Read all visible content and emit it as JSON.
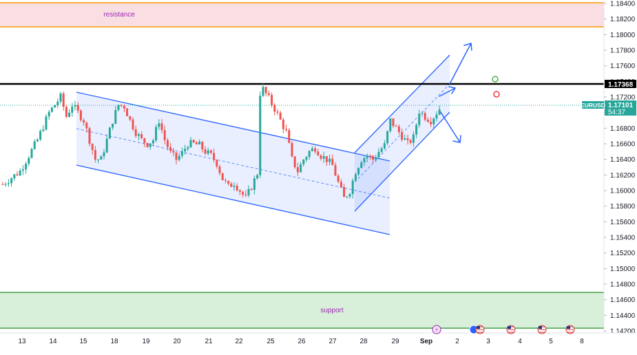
{
  "chart_data": {
    "type": "candlestick",
    "symbol": "EURUSD",
    "current_price": "1.17101",
    "countdown": "54:37",
    "key_level": "1.17368",
    "zones": {
      "resistance": {
        "label": "resistance",
        "from": 1.181,
        "to": 1.184
      },
      "support": {
        "label": "support",
        "from": 1.1424,
        "to": 1.147
      }
    },
    "ylim": [
      1.142,
      1.185
    ],
    "y_ticks": [
      "1.18400",
      "1.18200",
      "1.18000",
      "1.17800",
      "1.17600",
      "1.17400",
      "1.17200",
      "1.17000",
      "1.16800",
      "1.16600",
      "1.16400",
      "1.16200",
      "1.16000",
      "1.15800",
      "1.15600",
      "1.15400",
      "1.15200",
      "1.15000",
      "1.14800",
      "1.14600",
      "1.14400",
      "1.14200"
    ],
    "x_ticks": [
      "13",
      "14",
      "15",
      "18",
      "19",
      "20",
      "21",
      "22",
      "25",
      "26",
      "27",
      "28",
      "29",
      "Sep",
      "2",
      "3",
      "4",
      "5",
      "8"
    ],
    "close_path": [
      [
        0,
        1.1608
      ],
      [
        3,
        1.1625
      ],
      [
        6,
        1.1665
      ],
      [
        8,
        1.17
      ],
      [
        10,
        1.172
      ],
      [
        11,
        1.1695
      ],
      [
        12,
        1.171
      ],
      [
        13,
        1.17
      ],
      [
        14,
        1.169
      ],
      [
        15,
        1.1665
      ],
      [
        16,
        1.164
      ],
      [
        17,
        1.164
      ],
      [
        18,
        1.1665
      ],
      [
        19,
        1.169
      ],
      [
        20,
        1.171
      ],
      [
        21,
        1.1708
      ],
      [
        22,
        1.169
      ],
      [
        23,
        1.1675
      ],
      [
        24,
        1.1665
      ],
      [
        25,
        1.166
      ],
      [
        26,
        1.1665
      ],
      [
        27,
        1.169
      ],
      [
        28,
        1.1665
      ],
      [
        29,
        1.1648
      ],
      [
        30,
        1.164
      ],
      [
        31,
        1.1648
      ],
      [
        32,
        1.166
      ],
      [
        33,
        1.166
      ],
      [
        34,
        1.1658
      ],
      [
        35,
        1.165
      ],
      [
        36,
        1.1645
      ],
      [
        37,
        1.1635
      ],
      [
        38,
        1.1615
      ],
      [
        39,
        1.1605
      ],
      [
        40,
        1.161
      ],
      [
        41,
        1.16
      ],
      [
        42,
        1.159
      ],
      [
        43,
        1.1605
      ],
      [
        44,
        1.1622
      ],
      [
        44.5,
        1.1725
      ],
      [
        45,
        1.173
      ],
      [
        46,
        1.1718
      ],
      [
        47,
        1.1705
      ],
      [
        48,
        1.169
      ],
      [
        49,
        1.1675
      ],
      [
        50,
        1.164
      ],
      [
        51,
        1.1625
      ],
      [
        52,
        1.164
      ],
      [
        53,
        1.165
      ],
      [
        54,
        1.1655
      ],
      [
        55,
        1.1645
      ],
      [
        56,
        1.164
      ],
      [
        57,
        1.1632
      ],
      [
        58,
        1.161
      ],
      [
        59,
        1.159
      ],
      [
        60,
        1.16
      ],
      [
        61,
        1.1625
      ],
      [
        62,
        1.164
      ],
      [
        63,
        1.1645
      ],
      [
        64,
        1.164
      ],
      [
        65,
        1.165
      ],
      [
        66,
        1.1658
      ],
      [
        67,
        1.169
      ],
      [
        68,
        1.168
      ],
      [
        69,
        1.167
      ],
      [
        70,
        1.166
      ],
      [
        71,
        1.1668
      ],
      [
        72,
        1.1702
      ],
      [
        73,
        1.1695
      ],
      [
        74,
        1.169
      ],
      [
        75,
        1.17
      ],
      [
        76,
        1.171
      ]
    ]
  }
}
